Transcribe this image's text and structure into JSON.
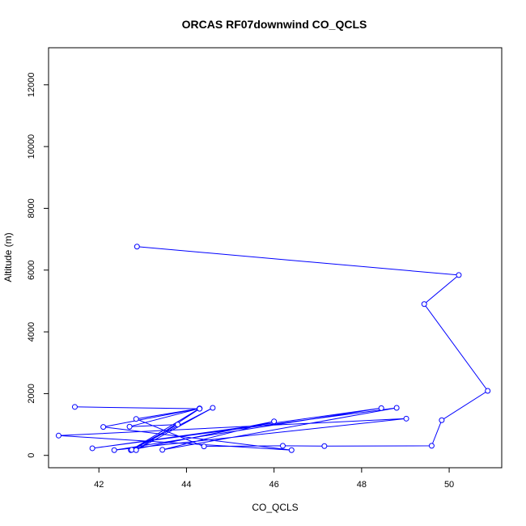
{
  "chart_data": {
    "type": "line",
    "title": "ORCAS RF07downwind CO_QCLS",
    "xlabel": "CO_QCLS",
    "ylabel": "Altitude (m)",
    "xlim": [
      40.85,
      51.2
    ],
    "ylim": [
      -400,
      13200
    ],
    "xticks": [
      42,
      44,
      46,
      48,
      50
    ],
    "yticks": [
      0,
      2000,
      4000,
      6000,
      8000,
      10000,
      12000
    ],
    "series_color": "#0000ff",
    "grid": false,
    "x": [
      42.87,
      50.22,
      49.43,
      50.88,
      49.83,
      49.6,
      47.15,
      46.2,
      44.4,
      42.85,
      44.3,
      42.7,
      43.8,
      42.73,
      44.3,
      42.1,
      46.4,
      41.08,
      49.02,
      42.35,
      48.45,
      41.85,
      48.8,
      43.45,
      46.0,
      42.75,
      44.6,
      42.85,
      44.3,
      41.45
    ],
    "y": [
      6760,
      5840,
      4900,
      2090,
      1140,
      310,
      300,
      310,
      290,
      1180,
      1520,
      930,
      1000,
      170,
      1520,
      920,
      170,
      640,
      1190,
      170,
      1530,
      230,
      1540,
      180,
      1100,
      180,
      1540,
      170,
      1510,
      1570
    ]
  }
}
